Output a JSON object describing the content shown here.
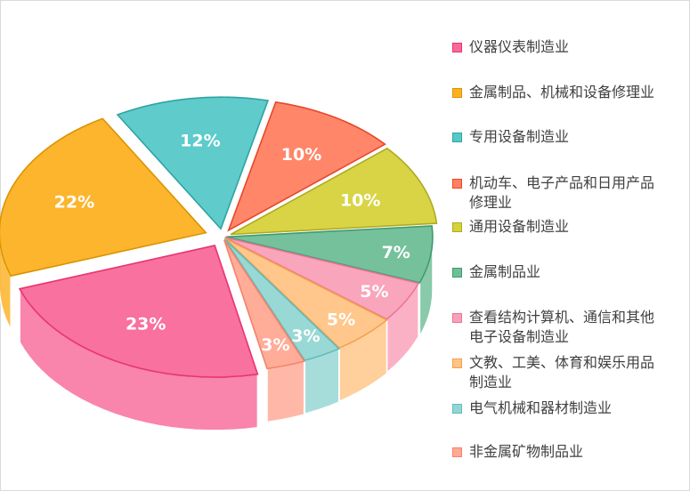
{
  "chart_data": {
    "type": "pie",
    "style": "3d-exploded",
    "legend_position": "right",
    "slices": [
      {
        "name": "仪器仪表制造业",
        "label": "23%",
        "value": 23,
        "color": "#F8699A",
        "edge": "#E8336F"
      },
      {
        "name": "金属制品、机械和设备修理业",
        "label": "22%",
        "value": 22,
        "color": "#FDB122",
        "edge": "#D99400"
      },
      {
        "name": "专用设备制造业",
        "label": "12%",
        "value": 12,
        "color": "#56C8C8",
        "edge": "#2FA3A3"
      },
      {
        "name": "机动车、电子产品和日用产品\n修理业",
        "label": "10%",
        "value": 10,
        "color": "#FF8060",
        "edge": "#E8472A"
      },
      {
        "name": "通用设备制造业",
        "label": "10%",
        "value": 10,
        "color": "#D6D23C",
        "edge": "#AFAB1E"
      },
      {
        "name": "金属制品业",
        "label": "7%",
        "value": 7,
        "color": "#6EBE96",
        "edge": "#3E9B6D"
      },
      {
        "name": "查看结构计算机、通信和其他\n电子设备制造业",
        "label": "5%",
        "value": 5,
        "color": "#F9A0B8",
        "edge": "#EA7596"
      },
      {
        "name": "文教、工美、体育和娱乐用品\n制造业",
        "label": "5%",
        "value": 5,
        "color": "#FFC486",
        "edge": "#F3A04D"
      },
      {
        "name": "电气机械和器材制造业",
        "label": "3%",
        "value": 3,
        "color": "#92D6D3",
        "edge": "#62BCB8"
      },
      {
        "name": "非金属矿物制品业",
        "label": "3%",
        "value": 3,
        "color": "#FFA894",
        "edge": "#F58268"
      }
    ]
  }
}
